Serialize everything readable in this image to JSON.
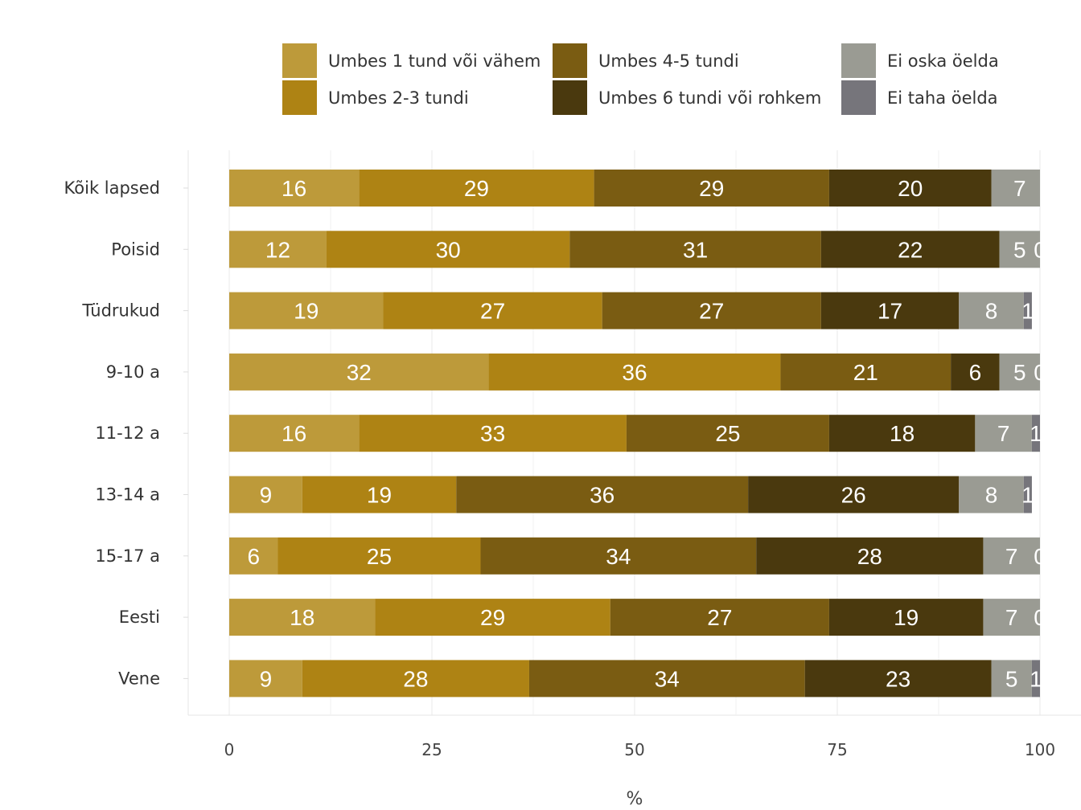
{
  "chart_data": {
    "type": "bar",
    "orientation": "horizontal",
    "stacked": true,
    "categories": [
      "Kõik lapsed",
      "Poisid",
      "Tüdrukud",
      "9-10 a",
      "11-12 a",
      "13-14 a",
      "15-17 a",
      "Eesti",
      "Vene"
    ],
    "series": [
      {
        "name": "Umbes 1 tund või vähem",
        "color": "#BD9A3A",
        "values": [
          16,
          12,
          19,
          32,
          16,
          9,
          6,
          18,
          9
        ]
      },
      {
        "name": "Umbes 2-3 tundi",
        "color": "#AE8314",
        "values": [
          29,
          30,
          27,
          36,
          33,
          19,
          25,
          29,
          28
        ]
      },
      {
        "name": "Umbes 4-5 tundi",
        "color": "#7A5C12",
        "values": [
          29,
          31,
          27,
          21,
          25,
          36,
          34,
          27,
          34
        ]
      },
      {
        "name": "Umbes 6 tundi või rohkem",
        "color": "#4A390E",
        "values": [
          20,
          22,
          17,
          6,
          18,
          26,
          28,
          19,
          23
        ]
      },
      {
        "name": "Ei oska öelda",
        "color": "#9A9B93",
        "values": [
          7,
          5,
          8,
          5,
          7,
          8,
          7,
          7,
          5
        ]
      },
      {
        "name": "Ei taha öelda",
        "color": "#76757B",
        "values": [
          0,
          0,
          1,
          0,
          1,
          1,
          0,
          0,
          1
        ]
      }
    ],
    "xlabel": "%",
    "ylabel": "",
    "xlim": [
      0,
      100
    ],
    "xticks": [
      0,
      25,
      50,
      75,
      100
    ],
    "grid": true,
    "legend_position": "top"
  }
}
